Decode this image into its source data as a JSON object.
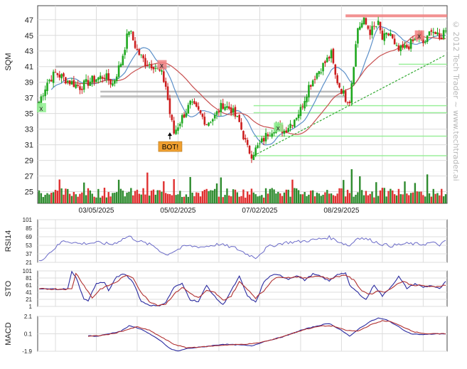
{
  "chart_data": [
    {
      "type": "candlestick",
      "panel": "price",
      "ylabel": "SQM",
      "y_ticks": [
        25,
        27,
        29,
        31,
        33,
        35,
        37,
        39,
        41,
        43,
        45,
        47
      ],
      "ylim": [
        23.5,
        48.8
      ],
      "x_tick_labels": [
        "03/05/2025",
        "05/02/2025",
        "07/02/2025",
        "08/29/2025"
      ],
      "x_tick_index": [
        28,
        68,
        108,
        148
      ],
      "bars": 200,
      "grid": true,
      "anchors": [
        [
          0,
          36.5
        ],
        [
          4,
          39
        ],
        [
          8,
          40.2
        ],
        [
          14,
          39.2
        ],
        [
          20,
          38.4
        ],
        [
          26,
          39.3
        ],
        [
          32,
          39.8
        ],
        [
          36,
          38.8
        ],
        [
          40,
          41.5
        ],
        [
          44,
          45.8
        ],
        [
          48,
          43
        ],
        [
          52,
          41.5
        ],
        [
          56,
          41.2
        ],
        [
          60,
          40
        ],
        [
          62,
          38.5
        ],
        [
          64,
          35
        ],
        [
          66,
          32.5
        ],
        [
          68,
          33.5
        ],
        [
          70,
          34.5
        ],
        [
          74,
          36.2
        ],
        [
          78,
          35.2
        ],
        [
          82,
          33.8
        ],
        [
          86,
          34.6
        ],
        [
          90,
          36.2
        ],
        [
          94,
          35.5
        ],
        [
          98,
          33.8
        ],
        [
          102,
          30.5
        ],
        [
          104,
          29.8
        ],
        [
          108,
          31
        ],
        [
          112,
          32.5
        ],
        [
          116,
          33.4
        ],
        [
          120,
          32.8
        ],
        [
          124,
          34
        ],
        [
          128,
          35.5
        ],
        [
          132,
          38.5
        ],
        [
          136,
          40.2
        ],
        [
          140,
          41.5
        ],
        [
          143,
          42.6
        ],
        [
          145,
          39.8
        ],
        [
          147,
          38.5
        ],
        [
          150,
          37
        ],
        [
          152,
          36.7
        ],
        [
          154,
          41.5
        ],
        [
          156,
          46
        ],
        [
          159,
          46.8
        ],
        [
          162,
          45.5
        ],
        [
          166,
          46.4
        ],
        [
          168,
          44.5
        ],
        [
          172,
          45.3
        ],
        [
          174,
          43.5
        ],
        [
          176,
          43
        ],
        [
          180,
          43.5
        ],
        [
          183,
          44.2
        ],
        [
          186,
          45
        ],
        [
          188,
          44
        ],
        [
          190,
          44.5
        ],
        [
          192,
          46
        ],
        [
          194,
          45.2
        ],
        [
          196,
          44.4
        ],
        [
          199,
          46
        ]
      ],
      "markers": [
        {
          "type": "x",
          "label": "x",
          "index": 1,
          "value": 35.7,
          "color": "#90ee90"
        },
        {
          "type": "x",
          "label": "x",
          "index": 60,
          "value": 41.2,
          "color": "#f08080"
        },
        {
          "type": "x",
          "label": "x",
          "index": 117,
          "value": 33.2,
          "color": "#90ee90"
        },
        {
          "type": "x",
          "label": "x",
          "index": 186,
          "value": 45,
          "color": "#f08080"
        },
        {
          "type": "signal",
          "label": "BOT!",
          "index": 64,
          "value": 31.5,
          "color": "#f0a030"
        }
      ],
      "resistance_lines": [
        {
          "value": 41,
          "color": "#b0b0b0"
        },
        {
          "value": 37.8,
          "color": "#b0b0b0"
        },
        {
          "value": 37.2,
          "color": "#b0b0b0"
        },
        {
          "value": 47.5,
          "color": "#f08080"
        }
      ],
      "support_lines": [
        {
          "value": 41.3,
          "color": "#90ee90"
        },
        {
          "value": 36,
          "color": "#90ee90"
        },
        {
          "value": 35.1,
          "color": "#90ee90"
        },
        {
          "value": 32.1,
          "color": "#90ee90"
        },
        {
          "value": 29.6,
          "color": "#90ee90"
        }
      ],
      "trendline": {
        "from": [
          105,
          29.6
        ],
        "to": [
          199,
          42.5
        ],
        "color": "#33aa33",
        "style": "dashed"
      },
      "volume": true
    },
    {
      "type": "line",
      "panel": "indicator",
      "ylabel": "RSI14",
      "y_ticks": [
        21,
        37,
        53,
        69,
        85,
        101
      ],
      "ylim": [
        21,
        101
      ],
      "anchors": [
        [
          0,
          22
        ],
        [
          12,
          62
        ],
        [
          20,
          56
        ],
        [
          28,
          58
        ],
        [
          36,
          55
        ],
        [
          40,
          63
        ],
        [
          44,
          70
        ],
        [
          48,
          62
        ],
        [
          56,
          52
        ],
        [
          62,
          35
        ],
        [
          66,
          42
        ],
        [
          72,
          52
        ],
        [
          80,
          50
        ],
        [
          88,
          55
        ],
        [
          96,
          48
        ],
        [
          102,
          36
        ],
        [
          106,
          30
        ],
        [
          112,
          50
        ],
        [
          120,
          58
        ],
        [
          128,
          60
        ],
        [
          136,
          64
        ],
        [
          142,
          68
        ],
        [
          148,
          58
        ],
        [
          152,
          52
        ],
        [
          156,
          68
        ],
        [
          162,
          63
        ],
        [
          168,
          55
        ],
        [
          172,
          52
        ],
        [
          180,
          56
        ],
        [
          188,
          55
        ],
        [
          192,
          58
        ],
        [
          196,
          54
        ],
        [
          199,
          60
        ]
      ],
      "color": "#6a6ac8"
    },
    {
      "type": "line",
      "panel": "indicator",
      "ylabel": "STO",
      "y_ticks": [
        1,
        21,
        41,
        61,
        81,
        101
      ],
      "ylim": [
        1,
        101
      ],
      "series": [
        {
          "values": [
            [
              0,
              50
            ],
            [
              14,
              50
            ],
            [
              16,
              98
            ],
            [
              18,
              85
            ],
            [
              22,
              20
            ],
            [
              24,
              18
            ],
            [
              28,
              65
            ],
            [
              32,
              70
            ],
            [
              34,
              45
            ],
            [
              38,
              85
            ],
            [
              42,
              92
            ],
            [
              46,
              70
            ],
            [
              50,
              15
            ],
            [
              54,
              5
            ],
            [
              58,
              2
            ],
            [
              62,
              12
            ],
            [
              66,
              55
            ],
            [
              70,
              65
            ],
            [
              74,
              20
            ],
            [
              78,
              15
            ],
            [
              82,
              60
            ],
            [
              86,
              28
            ],
            [
              90,
              5
            ],
            [
              94,
              45
            ],
            [
              98,
              85
            ],
            [
              102,
              30
            ],
            [
              106,
              12
            ],
            [
              110,
              70
            ],
            [
              114,
              90
            ],
            [
              118,
              88
            ],
            [
              122,
              78
            ],
            [
              126,
              88
            ],
            [
              130,
              75
            ],
            [
              134,
              92
            ],
            [
              138,
              85
            ],
            [
              142,
              72
            ],
            [
              146,
              92
            ],
            [
              150,
              95
            ],
            [
              152,
              60
            ],
            [
              156,
              40
            ],
            [
              160,
              20
            ],
            [
              164,
              62
            ],
            [
              168,
              30
            ],
            [
              172,
              55
            ],
            [
              176,
              85
            ],
            [
              180,
              52
            ],
            [
              184,
              65
            ],
            [
              188,
              55
            ],
            [
              192,
              60
            ],
            [
              196,
              50
            ],
            [
              199,
              70
            ]
          ],
          "color": "#2a2aa0"
        },
        {
          "values": [
            [
              0,
              50
            ],
            [
              16,
              50
            ],
            [
              18,
              95
            ],
            [
              22,
              60
            ],
            [
              26,
              25
            ],
            [
              30,
              50
            ],
            [
              34,
              60
            ],
            [
              38,
              70
            ],
            [
              42,
              88
            ],
            [
              46,
              82
            ],
            [
              50,
              40
            ],
            [
              54,
              15
            ],
            [
              58,
              5
            ],
            [
              62,
              8
            ],
            [
              66,
              35
            ],
            [
              70,
              55
            ],
            [
              74,
              38
            ],
            [
              78,
              25
            ],
            [
              82,
              45
            ],
            [
              86,
              40
            ],
            [
              90,
              18
            ],
            [
              94,
              30
            ],
            [
              98,
              70
            ],
            [
              102,
              50
            ],
            [
              106,
              25
            ],
            [
              110,
              45
            ],
            [
              114,
              75
            ],
            [
              118,
              85
            ],
            [
              122,
              82
            ],
            [
              126,
              85
            ],
            [
              130,
              80
            ],
            [
              134,
              86
            ],
            [
              138,
              86
            ],
            [
              142,
              78
            ],
            [
              146,
              85
            ],
            [
              150,
              90
            ],
            [
              154,
              75
            ],
            [
              158,
              45
            ],
            [
              162,
              35
            ],
            [
              166,
              45
            ],
            [
              170,
              42
            ],
            [
              174,
              60
            ],
            [
              178,
              72
            ],
            [
              182,
              62
            ],
            [
              186,
              60
            ],
            [
              190,
              58
            ],
            [
              194,
              55
            ],
            [
              199,
              62
            ]
          ],
          "color": "#b03030"
        }
      ]
    },
    {
      "type": "line",
      "panel": "indicator",
      "ylabel": "MACD",
      "y_tick_labels": [
        "2.1",
        "0.1",
        "-1.9"
      ],
      "y_ticks": [
        2.1,
        0.1,
        -1.9
      ],
      "ylim": [
        -1.9,
        2.1
      ],
      "x_start_index": 24,
      "series": [
        {
          "values": [
            [
              24,
              -0.1
            ],
            [
              28,
              -0.2
            ],
            [
              32,
              0
            ],
            [
              36,
              0.2
            ],
            [
              40,
              0.4
            ],
            [
              44,
              1.0
            ],
            [
              48,
              0.8
            ],
            [
              52,
              0.4
            ],
            [
              56,
              -0.2
            ],
            [
              60,
              -0.8
            ],
            [
              64,
              -1.6
            ],
            [
              68,
              -1.9
            ],
            [
              72,
              -1.6
            ],
            [
              80,
              -1.4
            ],
            [
              90,
              -1.1
            ],
            [
              100,
              -1.2
            ],
            [
              104,
              -1.3
            ],
            [
              110,
              -0.8
            ],
            [
              120,
              -0.2
            ],
            [
              128,
              0.5
            ],
            [
              136,
              1.0
            ],
            [
              142,
              1.3
            ],
            [
              148,
              0.5
            ],
            [
              152,
              -0.2
            ],
            [
              156,
              0.6
            ],
            [
              162,
              1.5
            ],
            [
              166,
              1.9
            ],
            [
              170,
              1.7
            ],
            [
              174,
              1.2
            ],
            [
              178,
              0.6
            ],
            [
              182,
              0.1
            ],
            [
              188,
              0.0
            ],
            [
              194,
              0.1
            ],
            [
              199,
              0.1
            ]
          ],
          "color": "#2a2aa0"
        },
        {
          "values": [
            [
              24,
              -0.2
            ],
            [
              30,
              -0.1
            ],
            [
              36,
              0.1
            ],
            [
              42,
              0.5
            ],
            [
              48,
              0.9
            ],
            [
              54,
              0.5
            ],
            [
              60,
              -0.3
            ],
            [
              66,
              -1.1
            ],
            [
              72,
              -1.5
            ],
            [
              80,
              -1.4
            ],
            [
              90,
              -1.2
            ],
            [
              100,
              -1.1
            ],
            [
              106,
              -1.0
            ],
            [
              114,
              -0.6
            ],
            [
              122,
              0.0
            ],
            [
              130,
              0.6
            ],
            [
              138,
              1.0
            ],
            [
              144,
              1.0
            ],
            [
              150,
              0.5
            ],
            [
              156,
              0.4
            ],
            [
              162,
              1.1
            ],
            [
              168,
              1.6
            ],
            [
              172,
              1.5
            ],
            [
              178,
              0.9
            ],
            [
              184,
              0.3
            ],
            [
              190,
              0.1
            ],
            [
              199,
              0.1
            ]
          ],
          "color": "#b03030"
        }
      ]
    }
  ],
  "watermark": "© 2012 Tech Trader ~ www.techtrader.ai"
}
